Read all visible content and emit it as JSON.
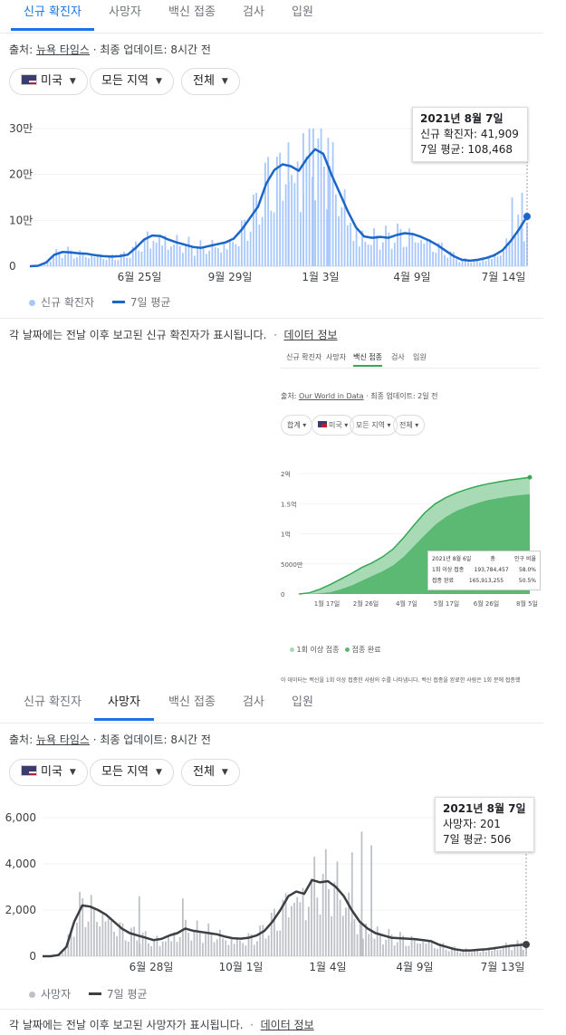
{
  "cases": {
    "tabs": [
      "신규 확진자",
      "사망자",
      "백신 접종",
      "검사",
      "입원"
    ],
    "active_tab": 0,
    "source_prefix": "출처: ",
    "source_name": "뉴욕 타임스",
    "source_suffix": " · 최종 업데이트: 8시간 전",
    "filters": {
      "country": "미국",
      "region": "모든 지역",
      "period": "전체"
    },
    "tooltip": {
      "date": "2021년 8월 7일",
      "line1": "신규 확진자: 41,909",
      "line2": "7일 평균: 108,468"
    },
    "legend": {
      "bars": "신규 확진자",
      "line": "7일 평균"
    },
    "note": "각 날짜에는 전날 이후 보고된 신규 확진자가 표시됩니다.",
    "note_link": "데이터 정보",
    "bar_color": "#a8c7fa",
    "line_color": "#1a66c9"
  },
  "vaccine": {
    "tabs": [
      "신규 확진자",
      "사망자",
      "백신 접종",
      "검사",
      "입원"
    ],
    "source_prefix": "출처: ",
    "source_name": "Our World in Data",
    "source_suffix": " · 최종 업데이트: 2일 전",
    "filters": {
      "dose": "합계",
      "country": "미국",
      "region": "모든 지역",
      "period": "전체"
    },
    "tooltip": {
      "date": "2021년 8월 6일",
      "col_total": "총",
      "col_pct": "인구 비율",
      "row1_label": "1회 이상 접종",
      "row1_total": "193,784,457",
      "row1_pct": "58.0%",
      "row2_label": "접종 완료",
      "row2_total": "165,913,255",
      "row2_pct": "50.5%"
    },
    "legend": {
      "a": "1회 이상 접종",
      "b": "접종 완료"
    },
    "note": "이 데이터는 백신을 1회 이상 접종한 사람의 수를 나타냅니다. 백신 접종을 완료한 사람은 1회 분에 접종했",
    "colors": {
      "partial": "#a8dab5",
      "full": "#5bb974",
      "line": "#34a853"
    }
  },
  "deaths": {
    "tabs": [
      "신규 확진자",
      "사망자",
      "백신 접종",
      "검사",
      "입원"
    ],
    "active_tab": 1,
    "source_prefix": "출처: ",
    "source_name": "뉴욕 타임스",
    "source_suffix": " · 최종 업데이트: 8시간 전",
    "filters": {
      "country": "미국",
      "region": "모든 지역",
      "period": "전체"
    },
    "tooltip": {
      "date": "2021년 8월 7일",
      "line1": "사망자: 201",
      "line2": "7일 평균: 506"
    },
    "legend": {
      "bars": "사망자",
      "line": "7일 평균"
    },
    "note": "각 날짜에는 전날 이후 보고된 사망자가 표시됩니다.",
    "note_link": "데이터 정보",
    "bar_color": "#bdc1c6",
    "line_color": "#3c4043"
  },
  "chart_data": [
    {
      "type": "bar",
      "title": "",
      "x_ticks": [
        "6월 25일",
        "9월 29일",
        "1월 3일",
        "4월 9일",
        "7월 14일"
      ],
      "y_ticks": [
        "0",
        "10만",
        "20만",
        "30만"
      ],
      "ylim": [
        0,
        300000
      ],
      "series": [
        {
          "name": "7일 평균",
          "type": "line",
          "values": [
            0,
            1000,
            8000,
            25000,
            31000,
            30000,
            28000,
            27000,
            24000,
            22000,
            21000,
            22000,
            25000,
            40000,
            58000,
            67000,
            66000,
            58000,
            52000,
            47000,
            42000,
            40000,
            44000,
            48000,
            52000,
            60000,
            80000,
            105000,
            130000,
            180000,
            210000,
            222000,
            218000,
            208000,
            235000,
            255000,
            245000,
            200000,
            160000,
            120000,
            85000,
            65000,
            62000,
            64000,
            62000,
            68000,
            72000,
            70000,
            64000,
            56000,
            46000,
            34000,
            22000,
            14000,
            12000,
            14000,
            18000,
            24000,
            35000,
            55000,
            80000,
            108468
          ]
        }
      ]
    },
    {
      "type": "area",
      "title": "",
      "x_ticks": [
        "1월 17일",
        "2월 26일",
        "4월 7일",
        "5월 17일",
        "6월 26일",
        "8월 5일"
      ],
      "y_ticks": [
        "0",
        "5000만",
        "1억",
        "1.5억",
        "2억"
      ],
      "ylim": [
        0,
        200000000
      ],
      "series": [
        {
          "name": "1회 이상 접종",
          "values": [
            0,
            2000000,
            8000000,
            16000000,
            25000000,
            34000000,
            44000000,
            52000000,
            62000000,
            75000000,
            94000000,
            115000000,
            135000000,
            150000000,
            160000000,
            168000000,
            174000000,
            179000000,
            183000000,
            186000000,
            189000000,
            191500000,
            193784457
          ]
        },
        {
          "name": "접종 완료",
          "values": [
            0,
            0,
            1000000,
            3000000,
            8000000,
            14000000,
            22000000,
            30000000,
            38000000,
            48000000,
            62000000,
            80000000,
            98000000,
            115000000,
            128000000,
            138000000,
            145000000,
            151000000,
            156000000,
            159000000,
            162000000,
            164000000,
            165913255
          ]
        }
      ]
    },
    {
      "type": "bar",
      "title": "",
      "x_ticks": [
        "6월 28일",
        "10월 1일",
        "1월 4일",
        "4월 9일",
        "7월 13일"
      ],
      "y_ticks": [
        "0",
        "2,000",
        "4,000",
        "6,000"
      ],
      "ylim": [
        0,
        6000
      ],
      "series": [
        {
          "name": "7일 평균",
          "type": "line",
          "values": [
            0,
            0,
            50,
            400,
            1500,
            2200,
            2150,
            2000,
            1800,
            1500,
            1200,
            1000,
            900,
            800,
            700,
            750,
            900,
            1000,
            1200,
            1100,
            1050,
            1000,
            950,
            850,
            780,
            760,
            800,
            900,
            1100,
            1500,
            2000,
            2600,
            2800,
            2700,
            3300,
            3200,
            3250,
            3000,
            2600,
            2000,
            1500,
            1200,
            1000,
            900,
            800,
            780,
            760,
            740,
            700,
            650,
            500,
            400,
            300,
            250,
            250,
            280,
            300,
            350,
            400,
            450,
            480,
            506
          ]
        }
      ]
    }
  ]
}
